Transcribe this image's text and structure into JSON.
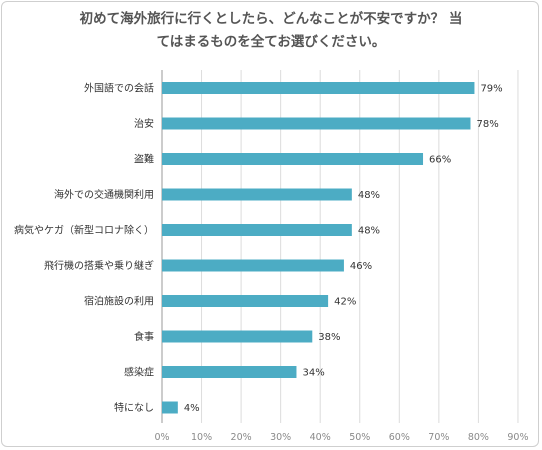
{
  "title_lines": [
    "初めて海外旅行に行くとしたら、どんなことが不安ですか？ 当",
    "てはまるものを全てお選びください。"
  ],
  "colors": {
    "bar": "#4cacc4",
    "grid": "#dcdcdc",
    "text": "#333333",
    "tick": "#8a8a8a"
  },
  "chart_data": {
    "type": "bar",
    "orientation": "horizontal",
    "title": "初めて海外旅行に行くとしたら、どんなことが不安ですか？ 当てはまるものを全てお選びください。",
    "categories": [
      "外国語での会話",
      "治安",
      "盗難",
      "海外での交通機関利用",
      "病気やケガ（新型コロナ除く）",
      "飛行機の搭乗や乗り継ぎ",
      "宿泊施設の利用",
      "食事",
      "感染症",
      "特になし"
    ],
    "values": [
      79,
      78,
      66,
      48,
      48,
      46,
      42,
      38,
      34,
      4
    ],
    "value_labels": [
      "79%",
      "78%",
      "66%",
      "48%",
      "48%",
      "46%",
      "42%",
      "38%",
      "34%",
      "4%"
    ],
    "xlim": [
      0,
      90
    ],
    "xticks": [
      "0%",
      "10%",
      "20%",
      "30%",
      "40%",
      "50%",
      "60%",
      "70%",
      "80%",
      "90%"
    ],
    "grid": true,
    "legend": "none"
  }
}
